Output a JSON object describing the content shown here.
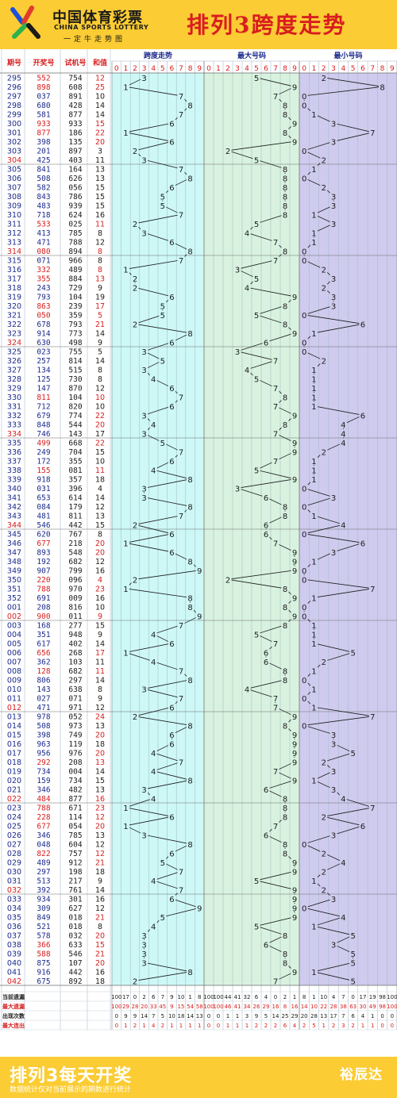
{
  "header": {
    "logo_cn": "中国体育彩票",
    "logo_en": "CHINA SPORTS LOTTERY",
    "logo_slogan": "一定牛走势图",
    "title": "排列3跨度走势"
  },
  "colors": {
    "header_bg": "#fbcc33",
    "title_red": "#d81e1e",
    "span_bg": "#cdf8f6",
    "max_bg": "#d8f2df",
    "min_bg": "#cfcbee",
    "row_red": "#d81e1e",
    "row_blue": "#1b2a8c"
  },
  "chart_data": {
    "type": "table",
    "columns": [
      "期号",
      "开奖号",
      "试机号",
      "和值"
    ],
    "sections": [
      "跨度走势",
      "最大号码",
      "最小号码"
    ],
    "digits": [
      "0",
      "1",
      "2",
      "3",
      "4",
      "5",
      "6",
      "7",
      "8",
      "9"
    ],
    "rows": [
      {
        "issue": "295",
        "draw": "552",
        "test": "754",
        "sum": "12",
        "span": 3,
        "max": 5,
        "min": 2
      },
      {
        "issue": "296",
        "draw": "898",
        "test": "608",
        "sum": "25",
        "span": 1,
        "max": 9,
        "min": 8
      },
      {
        "issue": "297",
        "draw": "037",
        "test": "891",
        "sum": "10",
        "span": 7,
        "max": 7,
        "min": 0
      },
      {
        "issue": "298",
        "draw": "680",
        "test": "428",
        "sum": "14",
        "span": 8,
        "max": 8,
        "min": 0
      },
      {
        "issue": "299",
        "draw": "581",
        "test": "877",
        "sum": "14",
        "span": 7,
        "max": 8,
        "min": 1
      },
      {
        "issue": "300",
        "draw": "933",
        "test": "933",
        "sum": "15",
        "span": 6,
        "max": 9,
        "min": 3
      },
      {
        "issue": "301",
        "draw": "877",
        "test": "186",
        "sum": "22",
        "span": 1,
        "max": 8,
        "min": 7
      },
      {
        "issue": "302",
        "draw": "398",
        "test": "135",
        "sum": "20",
        "span": 6,
        "max": 9,
        "min": 3
      },
      {
        "issue": "303",
        "draw": "201",
        "test": "897",
        "sum": "3",
        "span": 2,
        "max": 2,
        "min": 0
      },
      {
        "issue": "304",
        "draw": "425",
        "test": "403",
        "sum": "11",
        "span": 3,
        "max": 5,
        "min": 2
      },
      {
        "issue": "305",
        "draw": "841",
        "test": "164",
        "sum": "13",
        "span": 7,
        "max": 8,
        "min": 1
      },
      {
        "issue": "306",
        "draw": "508",
        "test": "626",
        "sum": "13",
        "span": 8,
        "max": 8,
        "min": 0
      },
      {
        "issue": "307",
        "draw": "582",
        "test": "056",
        "sum": "15",
        "span": 6,
        "max": 8,
        "min": 2
      },
      {
        "issue": "308",
        "draw": "843",
        "test": "786",
        "sum": "15",
        "span": 5,
        "max": 8,
        "min": 3
      },
      {
        "issue": "309",
        "draw": "483",
        "test": "939",
        "sum": "15",
        "span": 5,
        "max": 8,
        "min": 3
      },
      {
        "issue": "310",
        "draw": "718",
        "test": "624",
        "sum": "16",
        "span": 7,
        "max": 8,
        "min": 1
      },
      {
        "issue": "311",
        "draw": "533",
        "test": "025",
        "sum": "11",
        "span": 2,
        "max": 5,
        "min": 3
      },
      {
        "issue": "312",
        "draw": "413",
        "test": "785",
        "sum": "8",
        "span": 3,
        "max": 4,
        "min": 1
      },
      {
        "issue": "313",
        "draw": "471",
        "test": "788",
        "sum": "12",
        "span": 6,
        "max": 7,
        "min": 1
      },
      {
        "issue": "314",
        "draw": "080",
        "test": "894",
        "sum": "8",
        "span": 8,
        "max": 8,
        "min": 0
      },
      {
        "issue": "315",
        "draw": "071",
        "test": "966",
        "sum": "8",
        "span": 7,
        "max": 7,
        "min": 0
      },
      {
        "issue": "316",
        "draw": "332",
        "test": "489",
        "sum": "8",
        "span": 1,
        "max": 3,
        "min": 2
      },
      {
        "issue": "317",
        "draw": "355",
        "test": "884",
        "sum": "13",
        "span": 2,
        "max": 5,
        "min": 3
      },
      {
        "issue": "318",
        "draw": "243",
        "test": "729",
        "sum": "9",
        "span": 2,
        "max": 4,
        "min": 2
      },
      {
        "issue": "319",
        "draw": "793",
        "test": "104",
        "sum": "19",
        "span": 6,
        "max": 9,
        "min": 3
      },
      {
        "issue": "320",
        "draw": "863",
        "test": "239",
        "sum": "17",
        "span": 5,
        "max": 8,
        "min": 3
      },
      {
        "issue": "321",
        "draw": "050",
        "test": "359",
        "sum": "5",
        "span": 5,
        "max": 5,
        "min": 0
      },
      {
        "issue": "322",
        "draw": "678",
        "test": "793",
        "sum": "21",
        "span": 2,
        "max": 8,
        "min": 6
      },
      {
        "issue": "323",
        "draw": "914",
        "test": "773",
        "sum": "14",
        "span": 8,
        "max": 9,
        "min": 1
      },
      {
        "issue": "324",
        "draw": "630",
        "test": "498",
        "sum": "9",
        "span": 6,
        "max": 6,
        "min": 0
      },
      {
        "issue": "325",
        "draw": "023",
        "test": "755",
        "sum": "5",
        "span": 3,
        "max": 3,
        "min": 0
      },
      {
        "issue": "326",
        "draw": "257",
        "test": "814",
        "sum": "14",
        "span": 5,
        "max": 7,
        "min": 2
      },
      {
        "issue": "327",
        "draw": "134",
        "test": "515",
        "sum": "8",
        "span": 3,
        "max": 4,
        "min": 1
      },
      {
        "issue": "328",
        "draw": "125",
        "test": "730",
        "sum": "8",
        "span": 4,
        "max": 5,
        "min": 1
      },
      {
        "issue": "329",
        "draw": "147",
        "test": "870",
        "sum": "12",
        "span": 6,
        "max": 7,
        "min": 1
      },
      {
        "issue": "330",
        "draw": "811",
        "test": "104",
        "sum": "10",
        "span": 7,
        "max": 8,
        "min": 1
      },
      {
        "issue": "331",
        "draw": "712",
        "test": "820",
        "sum": "10",
        "span": 6,
        "max": 7,
        "min": 1
      },
      {
        "issue": "332",
        "draw": "679",
        "test": "774",
        "sum": "22",
        "span": 3,
        "max": 9,
        "min": 6
      },
      {
        "issue": "333",
        "draw": "848",
        "test": "544",
        "sum": "20",
        "span": 4,
        "max": 8,
        "min": 4
      },
      {
        "issue": "334",
        "draw": "746",
        "test": "143",
        "sum": "17",
        "span": 3,
        "max": 7,
        "min": 4
      },
      {
        "issue": "335",
        "draw": "499",
        "test": "668",
        "sum": "22",
        "span": 5,
        "max": 9,
        "min": 4
      },
      {
        "issue": "336",
        "draw": "249",
        "test": "704",
        "sum": "15",
        "span": 7,
        "max": 9,
        "min": 2
      },
      {
        "issue": "337",
        "draw": "172",
        "test": "355",
        "sum": "10",
        "span": 6,
        "max": 7,
        "min": 1
      },
      {
        "issue": "338",
        "draw": "155",
        "test": "081",
        "sum": "11",
        "span": 4,
        "max": 5,
        "min": 1
      },
      {
        "issue": "339",
        "draw": "918",
        "test": "357",
        "sum": "18",
        "span": 8,
        "max": 9,
        "min": 1
      },
      {
        "issue": "340",
        "draw": "031",
        "test": "396",
        "sum": "4",
        "span": 3,
        "max": 3,
        "min": 0
      },
      {
        "issue": "341",
        "draw": "653",
        "test": "614",
        "sum": "14",
        "span": 3,
        "max": 6,
        "min": 3
      },
      {
        "issue": "342",
        "draw": "084",
        "test": "179",
        "sum": "12",
        "span": 8,
        "max": 8,
        "min": 0
      },
      {
        "issue": "343",
        "draw": "481",
        "test": "811",
        "sum": "13",
        "span": 7,
        "max": 8,
        "min": 1
      },
      {
        "issue": "344",
        "draw": "546",
        "test": "442",
        "sum": "15",
        "span": 2,
        "max": 6,
        "min": 4
      },
      {
        "issue": "345",
        "draw": "620",
        "test": "767",
        "sum": "8",
        "span": 6,
        "max": 6,
        "min": 0
      },
      {
        "issue": "346",
        "draw": "677",
        "test": "218",
        "sum": "20",
        "span": 1,
        "max": 7,
        "min": 6
      },
      {
        "issue": "347",
        "draw": "893",
        "test": "548",
        "sum": "20",
        "span": 6,
        "max": 9,
        "min": 3
      },
      {
        "issue": "348",
        "draw": "192",
        "test": "682",
        "sum": "12",
        "span": 8,
        "max": 9,
        "min": 1
      },
      {
        "issue": "349",
        "draw": "907",
        "test": "799",
        "sum": "16",
        "span": 9,
        "max": 9,
        "min": 0
      },
      {
        "issue": "350",
        "draw": "220",
        "test": "096",
        "sum": "4",
        "span": 2,
        "max": 2,
        "min": 0
      },
      {
        "issue": "351",
        "draw": "788",
        "test": "970",
        "sum": "23",
        "span": 1,
        "max": 8,
        "min": 7
      },
      {
        "issue": "352",
        "draw": "691",
        "test": "009",
        "sum": "16",
        "span": 8,
        "max": 9,
        "min": 1
      },
      {
        "issue": "001",
        "draw": "208",
        "test": "816",
        "sum": "10",
        "span": 8,
        "max": 8,
        "min": 0
      },
      {
        "issue": "002",
        "draw": "900",
        "test": "011",
        "sum": "9",
        "span": 9,
        "max": 9,
        "min": 0
      },
      {
        "issue": "003",
        "draw": "168",
        "test": "277",
        "sum": "15",
        "span": 7,
        "max": 8,
        "min": 1
      },
      {
        "issue": "004",
        "draw": "351",
        "test": "948",
        "sum": "9",
        "span": 4,
        "max": 5,
        "min": 1
      },
      {
        "issue": "005",
        "draw": "617",
        "test": "402",
        "sum": "14",
        "span": 6,
        "max": 7,
        "min": 1
      },
      {
        "issue": "006",
        "draw": "656",
        "test": "268",
        "sum": "17",
        "span": 1,
        "max": 6,
        "min": 5
      },
      {
        "issue": "007",
        "draw": "362",
        "test": "103",
        "sum": "11",
        "span": 4,
        "max": 6,
        "min": 2
      },
      {
        "issue": "008",
        "draw": "128",
        "test": "682",
        "sum": "11",
        "span": 7,
        "max": 8,
        "min": 1
      },
      {
        "issue": "009",
        "draw": "806",
        "test": "297",
        "sum": "14",
        "span": 8,
        "max": 8,
        "min": 0
      },
      {
        "issue": "010",
        "draw": "143",
        "test": "638",
        "sum": "8",
        "span": 3,
        "max": 4,
        "min": 1
      },
      {
        "issue": "011",
        "draw": "027",
        "test": "071",
        "sum": "9",
        "span": 7,
        "max": 7,
        "min": 0
      },
      {
        "issue": "012",
        "draw": "471",
        "test": "971",
        "sum": "12",
        "span": 6,
        "max": 7,
        "min": 1
      },
      {
        "issue": "013",
        "draw": "978",
        "test": "052",
        "sum": "24",
        "span": 2,
        "max": 9,
        "min": 7
      },
      {
        "issue": "014",
        "draw": "508",
        "test": "973",
        "sum": "13",
        "span": 8,
        "max": 8,
        "min": 0
      },
      {
        "issue": "015",
        "draw": "398",
        "test": "749",
        "sum": "20",
        "span": 6,
        "max": 9,
        "min": 3
      },
      {
        "issue": "016",
        "draw": "963",
        "test": "119",
        "sum": "18",
        "span": 6,
        "max": 9,
        "min": 3
      },
      {
        "issue": "017",
        "draw": "956",
        "test": "976",
        "sum": "20",
        "span": 4,
        "max": 9,
        "min": 5
      },
      {
        "issue": "018",
        "draw": "292",
        "test": "208",
        "sum": "13",
        "span": 7,
        "max": 9,
        "min": 2
      },
      {
        "issue": "019",
        "draw": "734",
        "test": "004",
        "sum": "14",
        "span": 4,
        "max": 7,
        "min": 3
      },
      {
        "issue": "020",
        "draw": "159",
        "test": "734",
        "sum": "15",
        "span": 8,
        "max": 9,
        "min": 1
      },
      {
        "issue": "021",
        "draw": "346",
        "test": "482",
        "sum": "13",
        "span": 3,
        "max": 6,
        "min": 3
      },
      {
        "issue": "022",
        "draw": "484",
        "test": "877",
        "sum": "16",
        "span": 4,
        "max": 8,
        "min": 4
      },
      {
        "issue": "023",
        "draw": "788",
        "test": "671",
        "sum": "23",
        "span": 1,
        "max": 8,
        "min": 7
      },
      {
        "issue": "024",
        "draw": "228",
        "test": "114",
        "sum": "12",
        "span": 6,
        "max": 8,
        "min": 2
      },
      {
        "issue": "025",
        "draw": "677",
        "test": "054",
        "sum": "20",
        "span": 1,
        "max": 7,
        "min": 6
      },
      {
        "issue": "026",
        "draw": "346",
        "test": "785",
        "sum": "13",
        "span": 3,
        "max": 6,
        "min": 3
      },
      {
        "issue": "027",
        "draw": "048",
        "test": "604",
        "sum": "12",
        "span": 8,
        "max": 8,
        "min": 0
      },
      {
        "issue": "028",
        "draw": "822",
        "test": "757",
        "sum": "12",
        "span": 6,
        "max": 8,
        "min": 2
      },
      {
        "issue": "029",
        "draw": "489",
        "test": "912",
        "sum": "21",
        "span": 5,
        "max": 9,
        "min": 4
      },
      {
        "issue": "030",
        "draw": "297",
        "test": "198",
        "sum": "18",
        "span": 7,
        "max": 9,
        "min": 2
      },
      {
        "issue": "031",
        "draw": "513",
        "test": "217",
        "sum": "9",
        "span": 4,
        "max": 5,
        "min": 1
      },
      {
        "issue": "032",
        "draw": "392",
        "test": "761",
        "sum": "14",
        "span": 7,
        "max": 9,
        "min": 2
      },
      {
        "issue": "033",
        "draw": "934",
        "test": "301",
        "sum": "16",
        "span": 6,
        "max": 9,
        "min": 3
      },
      {
        "issue": "034",
        "draw": "309",
        "test": "627",
        "sum": "12",
        "span": 9,
        "max": 9,
        "min": 0
      },
      {
        "issue": "035",
        "draw": "849",
        "test": "018",
        "sum": "21",
        "span": 5,
        "max": 9,
        "min": 4
      },
      {
        "issue": "036",
        "draw": "521",
        "test": "018",
        "sum": "8",
        "span": 4,
        "max": 5,
        "min": 1
      },
      {
        "issue": "037",
        "draw": "578",
        "test": "032",
        "sum": "20",
        "span": 3,
        "max": 8,
        "min": 5
      },
      {
        "issue": "038",
        "draw": "366",
        "test": "633",
        "sum": "15",
        "span": 3,
        "max": 6,
        "min": 3
      },
      {
        "issue": "039",
        "draw": "588",
        "test": "546",
        "sum": "21",
        "span": 3,
        "max": 8,
        "min": 5
      },
      {
        "issue": "040",
        "draw": "875",
        "test": "107",
        "sum": "20",
        "span": 3,
        "max": 8,
        "min": 5
      },
      {
        "issue": "041",
        "draw": "916",
        "test": "442",
        "sum": "16",
        "span": 8,
        "max": 9,
        "min": 1
      },
      {
        "issue": "042",
        "draw": "675",
        "test": "892",
        "sum": "18",
        "span": 2,
        "max": 7,
        "min": 5
      }
    ],
    "stats": [
      {
        "label": "当前遗漏",
        "color": "#1b1b1b",
        "span": [
          "100",
          "17",
          "0",
          "2",
          "6",
          "7",
          "9",
          "10",
          "1",
          "8"
        ],
        "max": [
          "100",
          "100",
          "44",
          "41",
          "32",
          "6",
          "4",
          "0",
          "2",
          "1"
        ],
        "min": [
          "8",
          "1",
          "10",
          "4",
          "7",
          "0",
          "17",
          "19",
          "98",
          "100"
        ]
      },
      {
        "label": "最大遗漏",
        "color": "#d81e1e",
        "span": [
          "100",
          "29",
          "28",
          "20",
          "33",
          "45",
          "9",
          "15",
          "54",
          "58"
        ],
        "max": [
          "100",
          "100",
          "46",
          "41",
          "34",
          "26",
          "29",
          "16",
          "8",
          "16"
        ],
        "min": [
          "14",
          "10",
          "22",
          "28",
          "38",
          "63",
          "30",
          "49",
          "98",
          "100"
        ]
      },
      {
        "label": "出现次数",
        "color": "#1b1b1b",
        "span": [
          "0",
          "9",
          "9",
          "14",
          "7",
          "5",
          "10",
          "18",
          "14",
          "13"
        ],
        "max": [
          "0",
          "0",
          "1",
          "1",
          "3",
          "9",
          "5",
          "14",
          "25",
          "29"
        ],
        "min": [
          "20",
          "28",
          "13",
          "17",
          "7",
          "6",
          "4",
          "1",
          "0",
          "0"
        ]
      },
      {
        "label": "最大连出",
        "color": "#d81e1e",
        "span": [
          "0",
          "1",
          "2",
          "1",
          "4",
          "2",
          "1",
          "1",
          "1",
          "1"
        ],
        "max": [
          "0",
          "0",
          "1",
          "1",
          "1",
          "2",
          "2",
          "2",
          "6",
          "4"
        ],
        "min": [
          "2",
          "5",
          "1",
          "2",
          "3",
          "2",
          "1",
          "1",
          "0",
          "0"
        ]
      }
    ]
  },
  "footer": {
    "title": "排列3每天开奖",
    "note": "数据统计仅对当前展示的期数进行统计",
    "brand": "裕辰达"
  }
}
